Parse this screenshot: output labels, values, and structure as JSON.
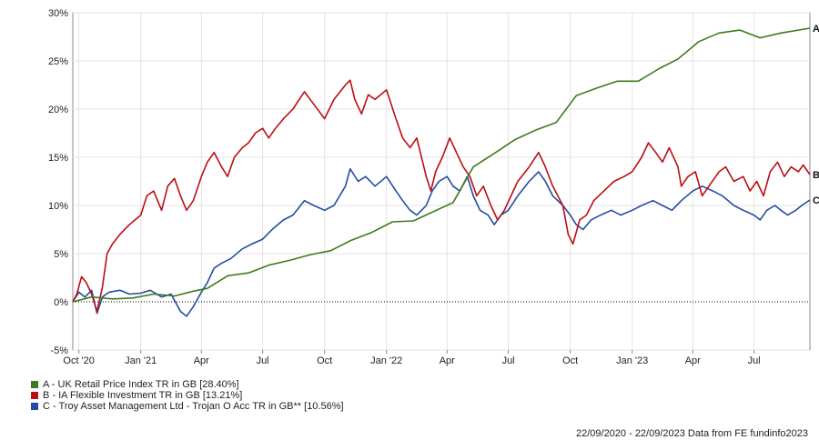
{
  "chart_data": {
    "type": "line",
    "ylim": [
      -5,
      30
    ],
    "yticks": [
      -5,
      0,
      5,
      10,
      15,
      20,
      25,
      30
    ],
    "ytick_labels": [
      "-5%",
      "0%",
      "5%",
      "10%",
      "15%",
      "20%",
      "25%",
      "30%"
    ],
    "xlim": [
      "2020-09-22",
      "2023-09-22"
    ],
    "xticks": [
      {
        "date": "2020-10-01",
        "label": "Oct '20"
      },
      {
        "date": "2021-01-01",
        "label": "Jan '21"
      },
      {
        "date": "2021-04-01",
        "label": "Apr"
      },
      {
        "date": "2021-07-01",
        "label": "Jul"
      },
      {
        "date": "2021-10-01",
        "label": "Oct"
      },
      {
        "date": "2022-01-01",
        "label": "Jan '22"
      },
      {
        "date": "2022-04-01",
        "label": "Apr"
      },
      {
        "date": "2022-07-01",
        "label": "Jul"
      },
      {
        "date": "2022-10-01",
        "label": "Oct"
      },
      {
        "date": "2023-01-01",
        "label": "Jan '23"
      },
      {
        "date": "2023-04-01",
        "label": "Apr"
      },
      {
        "date": "2023-07-01",
        "label": "Jul"
      }
    ],
    "grid": true,
    "zero_line": true,
    "series": [
      {
        "key": "A",
        "end_label": "A",
        "legend": "A - UK Retail Price Index TR in GB [28.40%]",
        "color": "#3b7b1c",
        "points": [
          [
            "2020-09-22",
            0.0
          ],
          [
            "2020-10-20",
            0.5
          ],
          [
            "2020-11-20",
            0.3
          ],
          [
            "2020-12-20",
            0.4
          ],
          [
            "2021-01-20",
            0.8
          ],
          [
            "2021-02-20",
            0.6
          ],
          [
            "2021-03-20",
            1.1
          ],
          [
            "2021-04-10",
            1.4
          ],
          [
            "2021-05-10",
            2.7
          ],
          [
            "2021-06-10",
            3.0
          ],
          [
            "2021-07-10",
            3.8
          ],
          [
            "2021-08-10",
            4.3
          ],
          [
            "2021-09-10",
            4.9
          ],
          [
            "2021-10-10",
            5.3
          ],
          [
            "2021-11-10",
            6.4
          ],
          [
            "2021-12-10",
            7.2
          ],
          [
            "2022-01-10",
            8.3
          ],
          [
            "2022-02-10",
            8.4
          ],
          [
            "2022-03-10",
            9.3
          ],
          [
            "2022-04-10",
            10.3
          ],
          [
            "2022-05-10",
            14.0
          ],
          [
            "2022-06-10",
            15.4
          ],
          [
            "2022-07-10",
            16.8
          ],
          [
            "2022-08-10",
            17.8
          ],
          [
            "2022-09-10",
            18.6
          ],
          [
            "2022-10-10",
            21.4
          ],
          [
            "2022-11-10",
            22.2
          ],
          [
            "2022-12-10",
            22.9
          ],
          [
            "2023-01-10",
            22.9
          ],
          [
            "2023-02-10",
            24.2
          ],
          [
            "2023-03-10",
            25.2
          ],
          [
            "2023-04-10",
            27.0
          ],
          [
            "2023-05-10",
            27.9
          ],
          [
            "2023-06-10",
            28.2
          ],
          [
            "2023-07-10",
            27.4
          ],
          [
            "2023-08-10",
            27.9
          ],
          [
            "2023-09-22",
            28.4
          ]
        ]
      },
      {
        "key": "B",
        "end_label": "B",
        "legend": "B - IA Flexible Investment TR in GB [13.21%]",
        "color": "#bb0e14",
        "points": [
          [
            "2020-09-22",
            0.0
          ],
          [
            "2020-09-28",
            0.8
          ],
          [
            "2020-10-05",
            2.6
          ],
          [
            "2020-10-12",
            2.0
          ],
          [
            "2020-10-20",
            0.8
          ],
          [
            "2020-10-28",
            -1.0
          ],
          [
            "2020-11-05",
            1.5
          ],
          [
            "2020-11-12",
            5.0
          ],
          [
            "2020-11-20",
            6.0
          ],
          [
            "2020-12-01",
            7.0
          ],
          [
            "2020-12-15",
            8.0
          ],
          [
            "2021-01-01",
            9.0
          ],
          [
            "2021-01-10",
            11.0
          ],
          [
            "2021-01-20",
            11.5
          ],
          [
            "2021-02-01",
            9.5
          ],
          [
            "2021-02-10",
            12.0
          ],
          [
            "2021-02-20",
            12.8
          ],
          [
            "2021-03-01",
            11.0
          ],
          [
            "2021-03-10",
            9.5
          ],
          [
            "2021-03-20",
            10.5
          ],
          [
            "2021-04-01",
            13.0
          ],
          [
            "2021-04-10",
            14.5
          ],
          [
            "2021-04-20",
            15.5
          ],
          [
            "2021-05-01",
            14.0
          ],
          [
            "2021-05-10",
            13.0
          ],
          [
            "2021-05-20",
            15.0
          ],
          [
            "2021-06-01",
            16.0
          ],
          [
            "2021-06-10",
            16.5
          ],
          [
            "2021-06-20",
            17.5
          ],
          [
            "2021-07-01",
            18.0
          ],
          [
            "2021-07-10",
            17.0
          ],
          [
            "2021-07-20",
            18.0
          ],
          [
            "2021-08-01",
            19.0
          ],
          [
            "2021-08-15",
            20.0
          ],
          [
            "2021-09-01",
            21.8
          ],
          [
            "2021-09-15",
            20.5
          ],
          [
            "2021-10-01",
            19.0
          ],
          [
            "2021-10-15",
            21.0
          ],
          [
            "2021-11-01",
            22.5
          ],
          [
            "2021-11-08",
            23.0
          ],
          [
            "2021-11-15",
            21.0
          ],
          [
            "2021-11-25",
            19.5
          ],
          [
            "2021-12-05",
            21.5
          ],
          [
            "2021-12-15",
            21.0
          ],
          [
            "2022-01-01",
            22.0
          ],
          [
            "2022-01-15",
            19.0
          ],
          [
            "2022-01-25",
            17.0
          ],
          [
            "2022-02-05",
            16.0
          ],
          [
            "2022-02-15",
            17.0
          ],
          [
            "2022-03-01",
            13.0
          ],
          [
            "2022-03-08",
            11.5
          ],
          [
            "2022-03-15",
            13.5
          ],
          [
            "2022-03-25",
            15.0
          ],
          [
            "2022-04-05",
            17.0
          ],
          [
            "2022-04-15",
            15.5
          ],
          [
            "2022-04-25",
            14.0
          ],
          [
            "2022-05-05",
            13.0
          ],
          [
            "2022-05-15",
            11.0
          ],
          [
            "2022-05-25",
            12.0
          ],
          [
            "2022-06-05",
            10.0
          ],
          [
            "2022-06-15",
            8.5
          ],
          [
            "2022-06-25",
            9.5
          ],
          [
            "2022-07-05",
            11.0
          ],
          [
            "2022-07-15",
            12.5
          ],
          [
            "2022-08-01",
            14.0
          ],
          [
            "2022-08-15",
            15.5
          ],
          [
            "2022-08-25",
            14.0
          ],
          [
            "2022-09-05",
            12.0
          ],
          [
            "2022-09-20",
            10.0
          ],
          [
            "2022-09-28",
            7.0
          ],
          [
            "2022-10-05",
            6.0
          ],
          [
            "2022-10-15",
            8.5
          ],
          [
            "2022-10-25",
            9.0
          ],
          [
            "2022-11-05",
            10.5
          ],
          [
            "2022-11-20",
            11.5
          ],
          [
            "2022-12-05",
            12.5
          ],
          [
            "2022-12-20",
            13.0
          ],
          [
            "2023-01-01",
            13.5
          ],
          [
            "2023-01-15",
            15.0
          ],
          [
            "2023-01-25",
            16.5
          ],
          [
            "2023-02-05",
            15.5
          ],
          [
            "2023-02-15",
            14.5
          ],
          [
            "2023-02-25",
            16.0
          ],
          [
            "2023-03-10",
            14.0
          ],
          [
            "2023-03-15",
            12.0
          ],
          [
            "2023-03-25",
            13.0
          ],
          [
            "2023-04-05",
            13.5
          ],
          [
            "2023-04-15",
            11.0
          ],
          [
            "2023-04-25",
            12.0
          ],
          [
            "2023-05-10",
            13.5
          ],
          [
            "2023-05-20",
            14.0
          ],
          [
            "2023-06-01",
            12.5
          ],
          [
            "2023-06-15",
            13.0
          ],
          [
            "2023-06-25",
            11.5
          ],
          [
            "2023-07-05",
            12.5
          ],
          [
            "2023-07-15",
            11.0
          ],
          [
            "2023-07-25",
            13.5
          ],
          [
            "2023-08-05",
            14.5
          ],
          [
            "2023-08-15",
            13.0
          ],
          [
            "2023-08-25",
            14.0
          ],
          [
            "2023-09-05",
            13.5
          ],
          [
            "2023-09-12",
            14.2
          ],
          [
            "2023-09-22",
            13.21
          ]
        ]
      },
      {
        "key": "C",
        "end_label": "C",
        "legend": "C - Troy Asset Management Ltd - Trojan O Acc TR in GB** [10.56%]",
        "color": "#244ca0",
        "points": [
          [
            "2020-09-22",
            0.0
          ],
          [
            "2020-10-01",
            1.0
          ],
          [
            "2020-10-10",
            0.5
          ],
          [
            "2020-10-20",
            1.2
          ],
          [
            "2020-10-28",
            -1.2
          ],
          [
            "2020-11-05",
            0.5
          ],
          [
            "2020-11-15",
            1.0
          ],
          [
            "2020-12-01",
            1.2
          ],
          [
            "2020-12-15",
            0.8
          ],
          [
            "2021-01-01",
            0.9
          ],
          [
            "2021-01-15",
            1.2
          ],
          [
            "2021-02-01",
            0.5
          ],
          [
            "2021-02-15",
            0.8
          ],
          [
            "2021-03-01",
            -1.0
          ],
          [
            "2021-03-10",
            -1.5
          ],
          [
            "2021-03-20",
            -0.5
          ],
          [
            "2021-04-01",
            1.0
          ],
          [
            "2021-04-10",
            2.0
          ],
          [
            "2021-04-20",
            3.5
          ],
          [
            "2021-05-01",
            4.0
          ],
          [
            "2021-05-15",
            4.5
          ],
          [
            "2021-06-01",
            5.5
          ],
          [
            "2021-06-15",
            6.0
          ],
          [
            "2021-07-01",
            6.5
          ],
          [
            "2021-07-15",
            7.5
          ],
          [
            "2021-08-01",
            8.5
          ],
          [
            "2021-08-15",
            9.0
          ],
          [
            "2021-09-01",
            10.5
          ],
          [
            "2021-09-15",
            10.0
          ],
          [
            "2021-10-01",
            9.5
          ],
          [
            "2021-10-15",
            10.0
          ],
          [
            "2021-11-01",
            12.0
          ],
          [
            "2021-11-08",
            13.8
          ],
          [
            "2021-11-20",
            12.5
          ],
          [
            "2021-12-01",
            13.0
          ],
          [
            "2021-12-15",
            12.0
          ],
          [
            "2022-01-01",
            13.0
          ],
          [
            "2022-01-15",
            11.5
          ],
          [
            "2022-01-25",
            10.5
          ],
          [
            "2022-02-05",
            9.5
          ],
          [
            "2022-02-15",
            9.0
          ],
          [
            "2022-03-01",
            10.0
          ],
          [
            "2022-03-10",
            11.5
          ],
          [
            "2022-03-20",
            12.5
          ],
          [
            "2022-04-01",
            13.0
          ],
          [
            "2022-04-10",
            12.0
          ],
          [
            "2022-04-20",
            11.5
          ],
          [
            "2022-05-01",
            13.0
          ],
          [
            "2022-05-10",
            11.0
          ],
          [
            "2022-05-20",
            9.5
          ],
          [
            "2022-06-01",
            9.0
          ],
          [
            "2022-06-10",
            8.0
          ],
          [
            "2022-06-20",
            9.0
          ],
          [
            "2022-07-01",
            9.5
          ],
          [
            "2022-07-15",
            11.0
          ],
          [
            "2022-08-01",
            12.5
          ],
          [
            "2022-08-15",
            13.5
          ],
          [
            "2022-08-25",
            12.5
          ],
          [
            "2022-09-05",
            11.0
          ],
          [
            "2022-09-20",
            10.0
          ],
          [
            "2022-10-01",
            9.0
          ],
          [
            "2022-10-10",
            8.0
          ],
          [
            "2022-10-20",
            7.5
          ],
          [
            "2022-11-01",
            8.5
          ],
          [
            "2022-11-15",
            9.0
          ],
          [
            "2022-12-01",
            9.5
          ],
          [
            "2022-12-15",
            9.0
          ],
          [
            "2023-01-01",
            9.5
          ],
          [
            "2023-01-15",
            10.0
          ],
          [
            "2023-02-01",
            10.5
          ],
          [
            "2023-02-15",
            10.0
          ],
          [
            "2023-03-01",
            9.5
          ],
          [
            "2023-03-15",
            10.5
          ],
          [
            "2023-04-01",
            11.5
          ],
          [
            "2023-04-15",
            12.0
          ],
          [
            "2023-05-01",
            11.5
          ],
          [
            "2023-05-15",
            11.0
          ],
          [
            "2023-06-01",
            10.0
          ],
          [
            "2023-06-15",
            9.5
          ],
          [
            "2023-07-01",
            9.0
          ],
          [
            "2023-07-10",
            8.5
          ],
          [
            "2023-07-20",
            9.5
          ],
          [
            "2023-08-01",
            10.0
          ],
          [
            "2023-08-10",
            9.5
          ],
          [
            "2023-08-20",
            9.0
          ],
          [
            "2023-09-01",
            9.5
          ],
          [
            "2023-09-10",
            10.0
          ],
          [
            "2023-09-22",
            10.56
          ]
        ]
      }
    ]
  },
  "footer": {
    "text": "22/09/2020 - 22/09/2023 Data from FE fundinfo2023"
  }
}
